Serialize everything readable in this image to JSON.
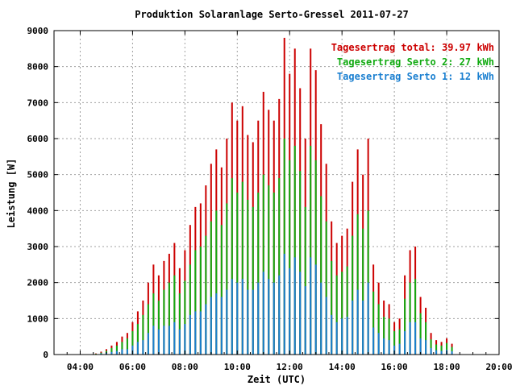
{
  "chart_data": {
    "type": "bar",
    "title": "Produktion Solaranlage Serto-Gressel 2011-07-27",
    "xlabel": "Zeit (UTC)",
    "ylabel": "Leistung [W]",
    "ylim": [
      0,
      9000
    ],
    "xlim": [
      "03:00",
      "20:00"
    ],
    "grid": true,
    "legend_position": "top-right",
    "x_ticks": [
      "04:00",
      "06:00",
      "08:00",
      "10:00",
      "12:00",
      "14:00",
      "16:00",
      "18:00",
      "20:00"
    ],
    "y_ticks": [
      0,
      1000,
      2000,
      3000,
      4000,
      5000,
      6000,
      7000,
      8000,
      9000
    ],
    "legend": [
      {
        "label": "Tagesertrag total: 39.97 kWh",
        "color": "#cc0000"
      },
      {
        "label": "Tagesertrag Serto 2: 27 kWh",
        "color": "#11aa11"
      },
      {
        "label": "Tagesertrag Serto 1: 12 kWh",
        "color": "#1a7fd0"
      }
    ],
    "series_colors": [
      "#cc0000",
      "#11aa11",
      "#1a7fd0"
    ],
    "times": [
      "04:36",
      "04:48",
      "05:00",
      "05:12",
      "05:24",
      "05:36",
      "05:48",
      "06:00",
      "06:12",
      "06:24",
      "06:36",
      "06:48",
      "07:00",
      "07:12",
      "07:24",
      "07:36",
      "07:48",
      "08:00",
      "08:12",
      "08:24",
      "08:36",
      "08:48",
      "09:00",
      "09:12",
      "09:24",
      "09:36",
      "09:48",
      "10:00",
      "10:12",
      "10:24",
      "10:36",
      "10:48",
      "11:00",
      "11:12",
      "11:24",
      "11:36",
      "11:48",
      "12:00",
      "12:12",
      "12:24",
      "12:36",
      "12:48",
      "13:00",
      "13:12",
      "13:24",
      "13:36",
      "13:48",
      "14:00",
      "14:12",
      "14:24",
      "14:36",
      "14:48",
      "15:00",
      "15:12",
      "15:24",
      "15:36",
      "15:48",
      "16:00",
      "16:12",
      "16:24",
      "16:36",
      "16:48",
      "17:00",
      "17:12",
      "17:24",
      "17:36",
      "17:48",
      "18:00",
      "18:12"
    ],
    "series": [
      {
        "name": "Tagesertrag total: 39.97 kWh",
        "values": [
          30,
          80,
          150,
          250,
          350,
          500,
          600,
          900,
          1200,
          1500,
          2000,
          2500,
          2200,
          2600,
          2800,
          3100,
          2400,
          2900,
          3600,
          4100,
          4200,
          4700,
          5300,
          5700,
          5200,
          6000,
          7000,
          6500,
          6900,
          6100,
          5900,
          6500,
          7300,
          6800,
          6500,
          7100,
          8800,
          7800,
          8500,
          7400,
          6000,
          8500,
          7900,
          6400,
          5300,
          3700,
          3100,
          3300,
          3500,
          4800,
          5700,
          5000,
          6000,
          2500,
          2000,
          1500,
          1400,
          900,
          1000,
          2200,
          2900,
          3000,
          1600,
          1300,
          600,
          400,
          350,
          450,
          300
        ]
      },
      {
        "name": "Tagesertrag Serto 2: 27 kWh",
        "values": [
          20,
          50,
          100,
          180,
          250,
          350,
          450,
          650,
          850,
          1100,
          1400,
          1700,
          1500,
          1800,
          2000,
          2200,
          1700,
          2050,
          2500,
          2900,
          3000,
          3300,
          3700,
          4000,
          3600,
          4200,
          4900,
          4500,
          4800,
          4300,
          4100,
          4500,
          5000,
          4700,
          4500,
          4900,
          6000,
          5400,
          5800,
          5100,
          4100,
          5800,
          5400,
          4400,
          3700,
          2600,
          2200,
          2300,
          2450,
          3300,
          3900,
          3500,
          4000,
          1750,
          1400,
          1050,
          1000,
          650,
          700,
          1550,
          2000,
          2100,
          1150,
          900,
          420,
          280,
          250,
          320,
          210
        ]
      },
      {
        "name": "Tagesertrag Serto 1: 12 kWh",
        "values": [
          10,
          30,
          50,
          70,
          100,
          150,
          150,
          250,
          350,
          400,
          600,
          800,
          700,
          800,
          800,
          900,
          700,
          850,
          1100,
          1200,
          1200,
          1400,
          1600,
          1700,
          1600,
          1800,
          2100,
          2000,
          2100,
          1800,
          1800,
          2000,
          2300,
          2100,
          2000,
          2200,
          2800,
          2400,
          2700,
          2300,
          1900,
          2700,
          2500,
          2000,
          1600,
          1100,
          900,
          1000,
          1050,
          1500,
          1800,
          1500,
          2000,
          750,
          600,
          450,
          400,
          250,
          300,
          650,
          900,
          900,
          450,
          400,
          180,
          120,
          100,
          130,
          90
        ]
      }
    ]
  }
}
